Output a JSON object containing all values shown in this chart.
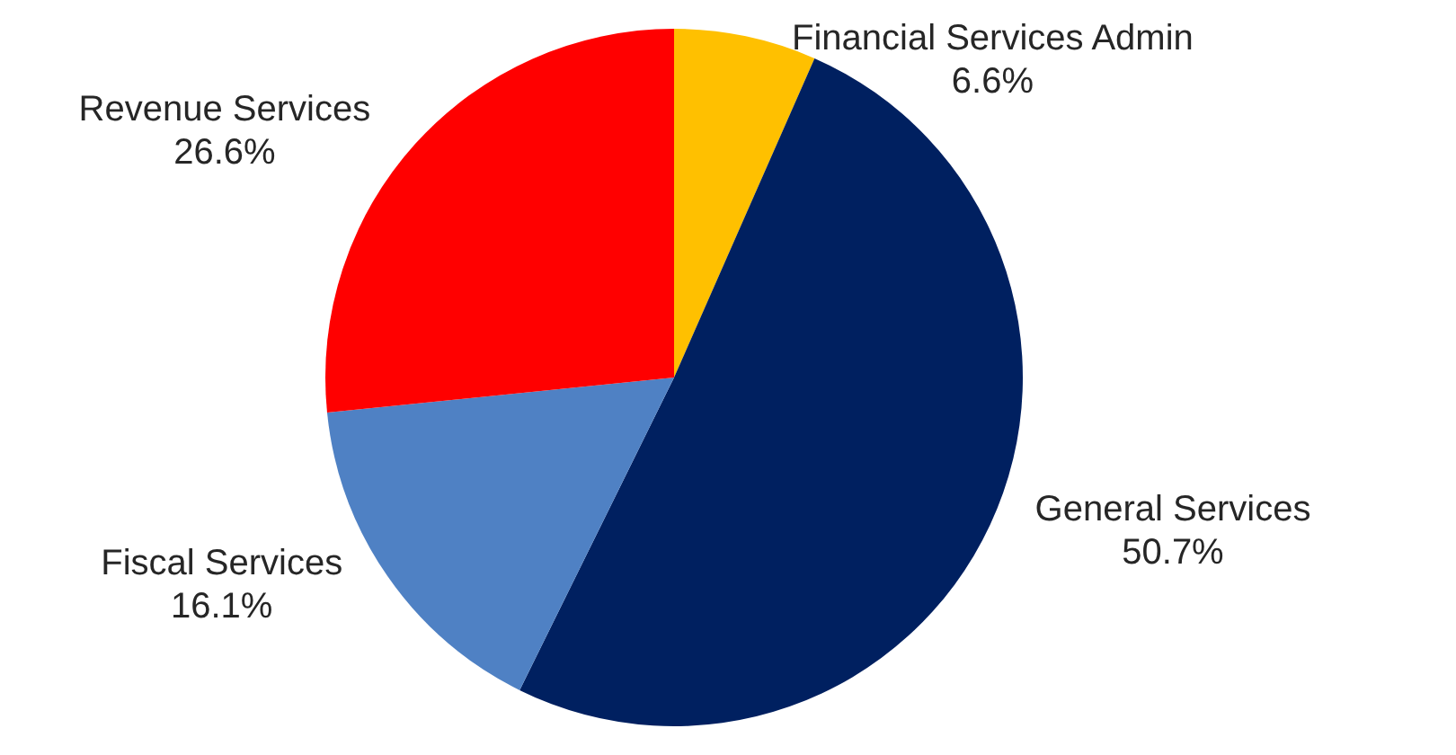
{
  "chart_data": {
    "type": "pie",
    "categories": [
      "Financial Services Admin",
      "General Services",
      "Fiscal Services",
      "Revenue Services"
    ],
    "values": [
      6.6,
      50.7,
      16.1,
      26.6
    ],
    "value_labels": [
      "6.6%",
      "50.7%",
      "16.1%",
      "26.6%"
    ],
    "colors": [
      "#ffc000",
      "#002060",
      "#4f81c4",
      "#ff0000"
    ],
    "legend": false
  }
}
